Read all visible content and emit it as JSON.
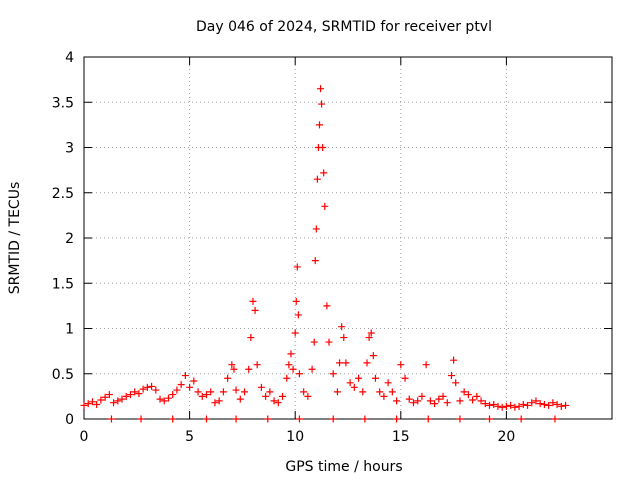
{
  "chart_data": {
    "type": "scatter",
    "title": "Day 046 of 2024, SRMTID for receiver ptvl",
    "xlabel": "GPS time / hours",
    "ylabel": "SRMTID / TECUs",
    "xlim": [
      0,
      25
    ],
    "ylim": [
      0,
      4
    ],
    "xticks": [
      0,
      5,
      10,
      15,
      20
    ],
    "yticks": [
      0,
      0.5,
      1,
      1.5,
      2,
      2.5,
      3,
      3.5,
      4
    ],
    "xtick_labels": [
      "0",
      "5",
      "10",
      "15",
      "20"
    ],
    "ytick_labels": [
      "0",
      "0.5",
      "1",
      "1.5",
      "2",
      "2.5",
      "3",
      "3.5",
      "4"
    ],
    "grid": true,
    "marker": "+",
    "color": "#ff0000",
    "series": [
      {
        "name": "SRMTID",
        "x": [
          0.0,
          0.2,
          0.4,
          0.6,
          0.8,
          1.0,
          1.2,
          1.4,
          1.6,
          1.8,
          2.0,
          2.2,
          2.4,
          2.6,
          2.8,
          3.0,
          3.2,
          3.4,
          3.6,
          3.8,
          4.0,
          4.2,
          4.4,
          4.6,
          4.8,
          5.0,
          5.2,
          5.4,
          5.6,
          5.8,
          6.0,
          6.2,
          6.4,
          6.6,
          6.8,
          7.0,
          7.1,
          7.2,
          7.4,
          7.6,
          7.8,
          7.9,
          8.0,
          8.1,
          8.2,
          8.4,
          8.6,
          8.8,
          9.0,
          9.2,
          9.4,
          9.6,
          9.7,
          9.8,
          9.9,
          10.0,
          10.05,
          10.1,
          10.15,
          10.2,
          10.4,
          10.6,
          10.8,
          10.9,
          10.95,
          11.0,
          11.05,
          11.1,
          11.15,
          11.2,
          11.25,
          11.3,
          11.35,
          11.4,
          11.5,
          11.6,
          11.8,
          12.0,
          12.1,
          12.2,
          12.3,
          12.4,
          12.6,
          12.8,
          13.0,
          13.2,
          13.4,
          13.5,
          13.6,
          13.7,
          13.8,
          14.0,
          14.2,
          14.4,
          14.6,
          14.8,
          15.0,
          15.2,
          15.4,
          15.6,
          15.8,
          16.0,
          16.2,
          16.4,
          16.6,
          16.8,
          17.0,
          17.2,
          17.4,
          17.5,
          17.6,
          17.8,
          18.0,
          18.2,
          18.4,
          18.6,
          18.8,
          19.0,
          19.2,
          19.4,
          19.6,
          19.8,
          20.0,
          20.2,
          20.4,
          20.6,
          20.8,
          21.0,
          21.2,
          21.4,
          21.6,
          21.8,
          22.0,
          22.2,
          22.4,
          22.6,
          22.8,
          1.3,
          2.7,
          4.2,
          5.8,
          7.2,
          8.7,
          10.2,
          11.8,
          13.3,
          14.8,
          16.3,
          17.8,
          19.2,
          20.7,
          22.3
        ],
        "y": [
          0.15,
          0.17,
          0.19,
          0.16,
          0.21,
          0.24,
          0.27,
          0.18,
          0.2,
          0.22,
          0.25,
          0.27,
          0.3,
          0.28,
          0.33,
          0.35,
          0.36,
          0.32,
          0.22,
          0.2,
          0.23,
          0.27,
          0.32,
          0.38,
          0.48,
          0.35,
          0.42,
          0.3,
          0.25,
          0.27,
          0.3,
          0.18,
          0.2,
          0.3,
          0.45,
          0.6,
          0.55,
          0.32,
          0.22,
          0.3,
          0.55,
          0.9,
          1.3,
          1.2,
          0.6,
          0.35,
          0.25,
          0.3,
          0.2,
          0.18,
          0.25,
          0.45,
          0.6,
          0.72,
          0.55,
          0.95,
          1.3,
          1.68,
          1.15,
          0.5,
          0.3,
          0.25,
          0.55,
          0.85,
          1.75,
          2.1,
          2.65,
          3.0,
          3.25,
          3.65,
          3.48,
          3.0,
          2.72,
          2.35,
          1.25,
          0.85,
          0.5,
          0.3,
          0.62,
          1.02,
          0.9,
          0.62,
          0.4,
          0.35,
          0.45,
          0.3,
          0.62,
          0.9,
          0.95,
          0.7,
          0.45,
          0.3,
          0.25,
          0.4,
          0.3,
          0.2,
          0.6,
          0.45,
          0.22,
          0.18,
          0.2,
          0.25,
          0.6,
          0.2,
          0.17,
          0.22,
          0.25,
          0.18,
          0.48,
          0.65,
          0.4,
          0.2,
          0.3,
          0.27,
          0.21,
          0.25,
          0.2,
          0.17,
          0.15,
          0.16,
          0.14,
          0.13,
          0.14,
          0.15,
          0.13,
          0.14,
          0.16,
          0.15,
          0.18,
          0.2,
          0.17,
          0.16,
          0.15,
          0.18,
          0.16,
          0.14,
          0.15,
          0.0,
          0.0,
          0.0,
          0.0,
          0.0,
          0.0,
          0.0,
          0.0,
          0.0,
          0.0,
          0.0,
          0.0,
          0.0,
          0.0,
          0.0
        ]
      }
    ]
  }
}
